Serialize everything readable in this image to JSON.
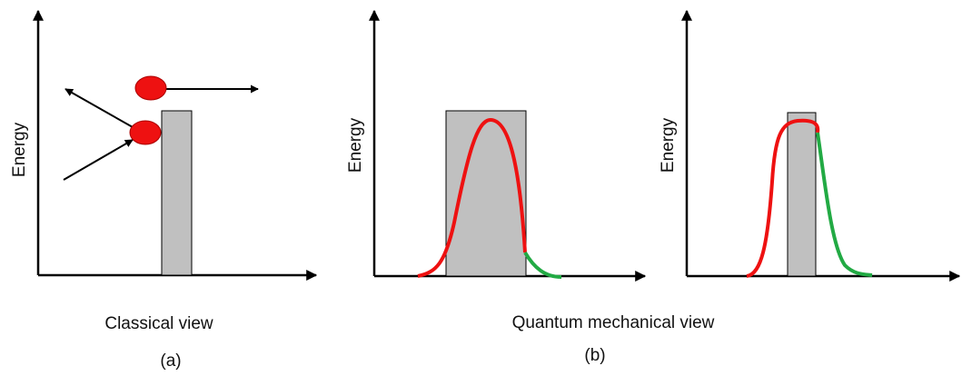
{
  "y_axis_labels": [
    "Energy",
    "Energy",
    "Energy"
  ],
  "captions": [
    "Classical view",
    "Quantum mechanical view"
  ],
  "tags": [
    "(a)",
    "(b)"
  ]
}
